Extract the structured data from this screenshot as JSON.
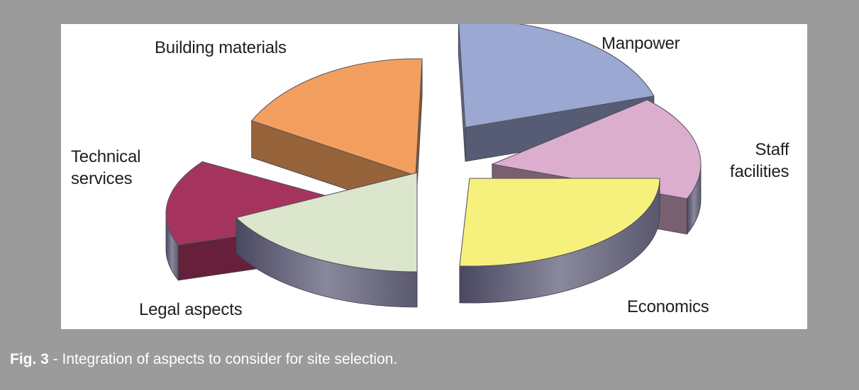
{
  "diagram": {
    "segments": [
      {
        "id": "manpower",
        "label": "Manpower",
        "color": "#9aa8d2"
      },
      {
        "id": "staff-facilities",
        "label": "Staff\nfacilities",
        "color": "#dcaecd"
      },
      {
        "id": "economics",
        "label": "Economics",
        "color": "#f6f17c"
      },
      {
        "id": "legal-aspects",
        "label": "Legal aspects",
        "color": "#dce6cc"
      },
      {
        "id": "technical-services",
        "label": "Technical\nservices",
        "color": "#a4345e"
      },
      {
        "id": "building-materials",
        "label": "Building materials",
        "color": "#f29f5f"
      }
    ]
  },
  "caption": {
    "fig_number": "Fig. 3",
    "separator": " - ",
    "text": "Integration of aspects to consider for site selection."
  }
}
